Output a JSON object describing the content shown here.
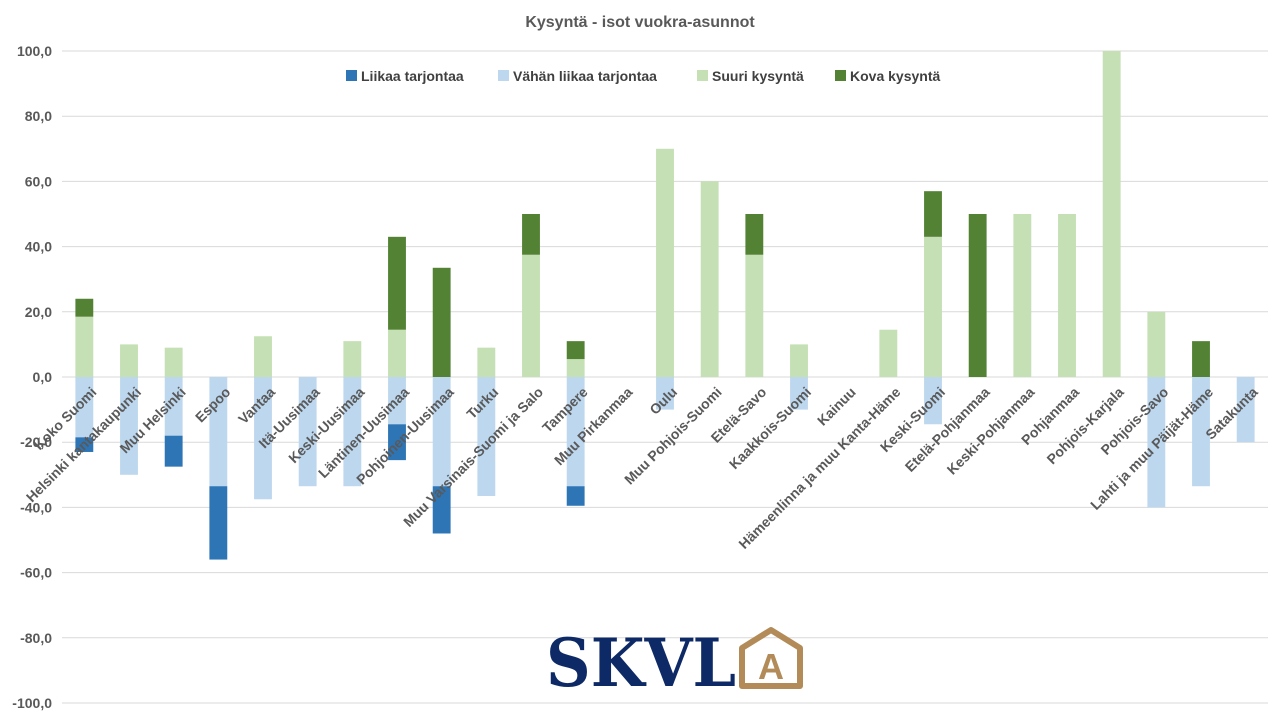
{
  "chart_data": {
    "type": "bar",
    "stacked": true,
    "title": "Kysyntä - isot vuokra-asunnot",
    "xlabel": "",
    "ylabel": "",
    "ylim": [
      -100,
      100
    ],
    "y_ticks": [
      "100,0",
      "80,0",
      "60,0",
      "40,0",
      "20,0",
      "0,0",
      "-20,0",
      "-40,0",
      "-60,0",
      "-80,0",
      "-100,0"
    ],
    "grid": true,
    "legend_position": "top",
    "categories": [
      "Koko Suomi",
      "Helsinki kantakaupunki",
      "Muu Helsinki",
      "Espoo",
      "Vantaa",
      "Itä-Uusimaa",
      "Keski-Uusimaa",
      "Läntinen-Uusimaa",
      "Pohjoinen-Uusimaa",
      "Turku",
      "Muu Varsinais-Suomi ja Salo",
      "Tampere",
      "Muu Pirkanmaa",
      "Oulu",
      "Muu Pohjois-Suomi",
      "Etelä-Savo",
      "Kaakkois-Suomi",
      "Kainuu",
      "Hämeenlinna ja muu Kanta-Häme",
      "Keski-Suomi",
      "Etelä-Pohjanmaa",
      "Keski-Pohjanmaa",
      "Pohjanmaa",
      "Pohjois-Karjala",
      "Pohjois-Savo",
      "Lahti ja muu Päijät-Häme",
      "Satakunta"
    ],
    "series": [
      {
        "name": "Liikaa tarjontaa",
        "color": "#2E75B6",
        "values": [
          -4.5,
          0,
          -9.5,
          -22.5,
          0,
          0,
          0,
          -11,
          -14.5,
          0,
          0,
          -6,
          0,
          0,
          0,
          0,
          0,
          0,
          0,
          0,
          0,
          0,
          0,
          0,
          0,
          0,
          0
        ]
      },
      {
        "name": "Vähän liikaa tarjontaa",
        "color": "#BDD7EE",
        "values": [
          -18.5,
          -30,
          -18,
          -33.5,
          -37.5,
          -33.5,
          -33.5,
          -14.5,
          -33.5,
          -36.5,
          0,
          -33.5,
          0,
          -10,
          0,
          0,
          -10,
          0,
          0,
          -14.5,
          0,
          0,
          0,
          0,
          -40,
          -33.5,
          -20
        ]
      },
      {
        "name": "Suuri kysyntä",
        "color": "#C5E0B4",
        "values": [
          18.5,
          10,
          9,
          0,
          12.5,
          0,
          11,
          14.5,
          0,
          9,
          37.5,
          5.5,
          0,
          70,
          60,
          37.5,
          10,
          0,
          14.5,
          43,
          0,
          50,
          50,
          100,
          20,
          0,
          0
        ]
      },
      {
        "name": "Kova kysyntä",
        "color": "#548235",
        "values": [
          5.5,
          0,
          0,
          0,
          0,
          0,
          0,
          28.5,
          33.5,
          0,
          12.5,
          5.5,
          0,
          0,
          0,
          12.5,
          0,
          0,
          0,
          14,
          50,
          0,
          0,
          0,
          0,
          11,
          0
        ]
      }
    ]
  },
  "logo": {
    "text": "SKVL",
    "letter": "A",
    "text_color": "#0E2A66",
    "accent_color": "#B38B59"
  },
  "colors": {
    "grid": "#D9D9D9",
    "text": "#595959"
  }
}
